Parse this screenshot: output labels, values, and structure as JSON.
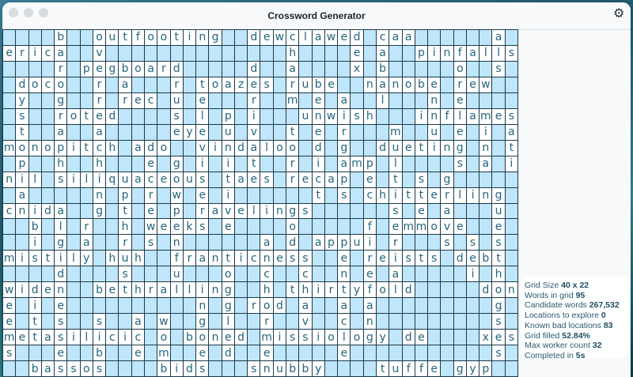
{
  "window": {
    "title": "Crossword Generator",
    "settings_icon": "gear-icon"
  },
  "colors": {
    "blank_cell": "#bfe6fb",
    "letter_cell": "#ffffff",
    "letter": "#23657e",
    "grid_line": "#1c3a48"
  },
  "grid": [
    "....b..outfooting..dewclawed.caa......a.",
    "erica..v..............h....e.a..pinfalls",
    "....r.pegboard.....d..a....x.b.....o..s.",
    ".doco..r.a...r.toazes.rube..nanobe.rew..",
    ".y..g..r.rec.u.e...r..m.e.a..l...n.e....",
    ".s..roted....s.l.p.i...unwish...inflames",
    ".t..a..a.....eye.u.v..t.e.r...m..u.e.i.a",
    "monopitch.ado..vindaloo.d.g..dueting.n.t",
    ".p..h..h...e.g.i.i.t..r.i.amp.l....s.a.i",
    "nil.siliquaceous.taes.recap.e.t.s.g.....",
    ".a.....n.p.r.w.e.i......t.s.chitterling.",
    "cnida..g.t.e.p.ravelings......s.e.a...u.",
    "..b.l.r..h.weeks.e....o.....f.emmove..e.",
    "..i.g.a..r.s.n......a.d.appui.r...s.s.s.",
    "mistily.huh..franticness..e.reists.debt.",
    "....d....s...u...o..c..c..n.e.a.....i.h.",
    "widen..bethralling..h.thirtyfold.....don",
    "e.i.e..........n.g.rod.a..a.a.........g.",
    "e.t.s..s..a.w..g.l..r..v..c.n.........s.",
    "metasilicic.o.boned.missiology.de....xes",
    "s...e..b..e.m..e.d..e.....e...........s.",
    "..bassos....bids...snubby....tuffe.gyp.."
  ],
  "stats": [
    {
      "label": "Grid Size",
      "value": "40 x 22"
    },
    {
      "label": "Words in grid",
      "value": "95"
    },
    {
      "label": "Candidate words",
      "value": "267,532"
    },
    {
      "label": "Locations to explore",
      "value": "0"
    },
    {
      "label": "Known bad locations",
      "value": "83"
    },
    {
      "label": "Grid filled",
      "value": "52.84%"
    },
    {
      "label": "Max worker count",
      "value": "32"
    },
    {
      "label": "Completed in",
      "value": "5s"
    }
  ]
}
